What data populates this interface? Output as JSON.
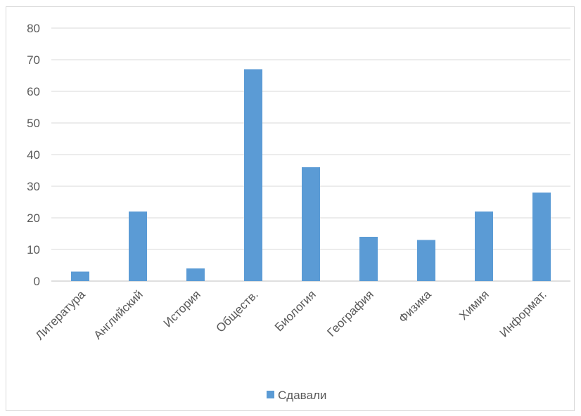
{
  "chart_data": {
    "type": "bar",
    "title": "",
    "xlabel": "",
    "ylabel": "",
    "categories": [
      "Литература",
      "Английский",
      "История",
      "Обществ.",
      "Биология",
      "География",
      "Физика",
      "Химия",
      "Информат."
    ],
    "series": [
      {
        "name": "Сдавали",
        "values": [
          3,
          22,
          4,
          67,
          36,
          14,
          13,
          22,
          28
        ],
        "color": "#5b9bd5"
      }
    ],
    "ylim": [
      0,
      80
    ],
    "yticks": [
      "0",
      "10",
      "20",
      "30",
      "40",
      "50",
      "60",
      "70",
      "80"
    ],
    "grid": true,
    "legend_position": "bottom"
  }
}
